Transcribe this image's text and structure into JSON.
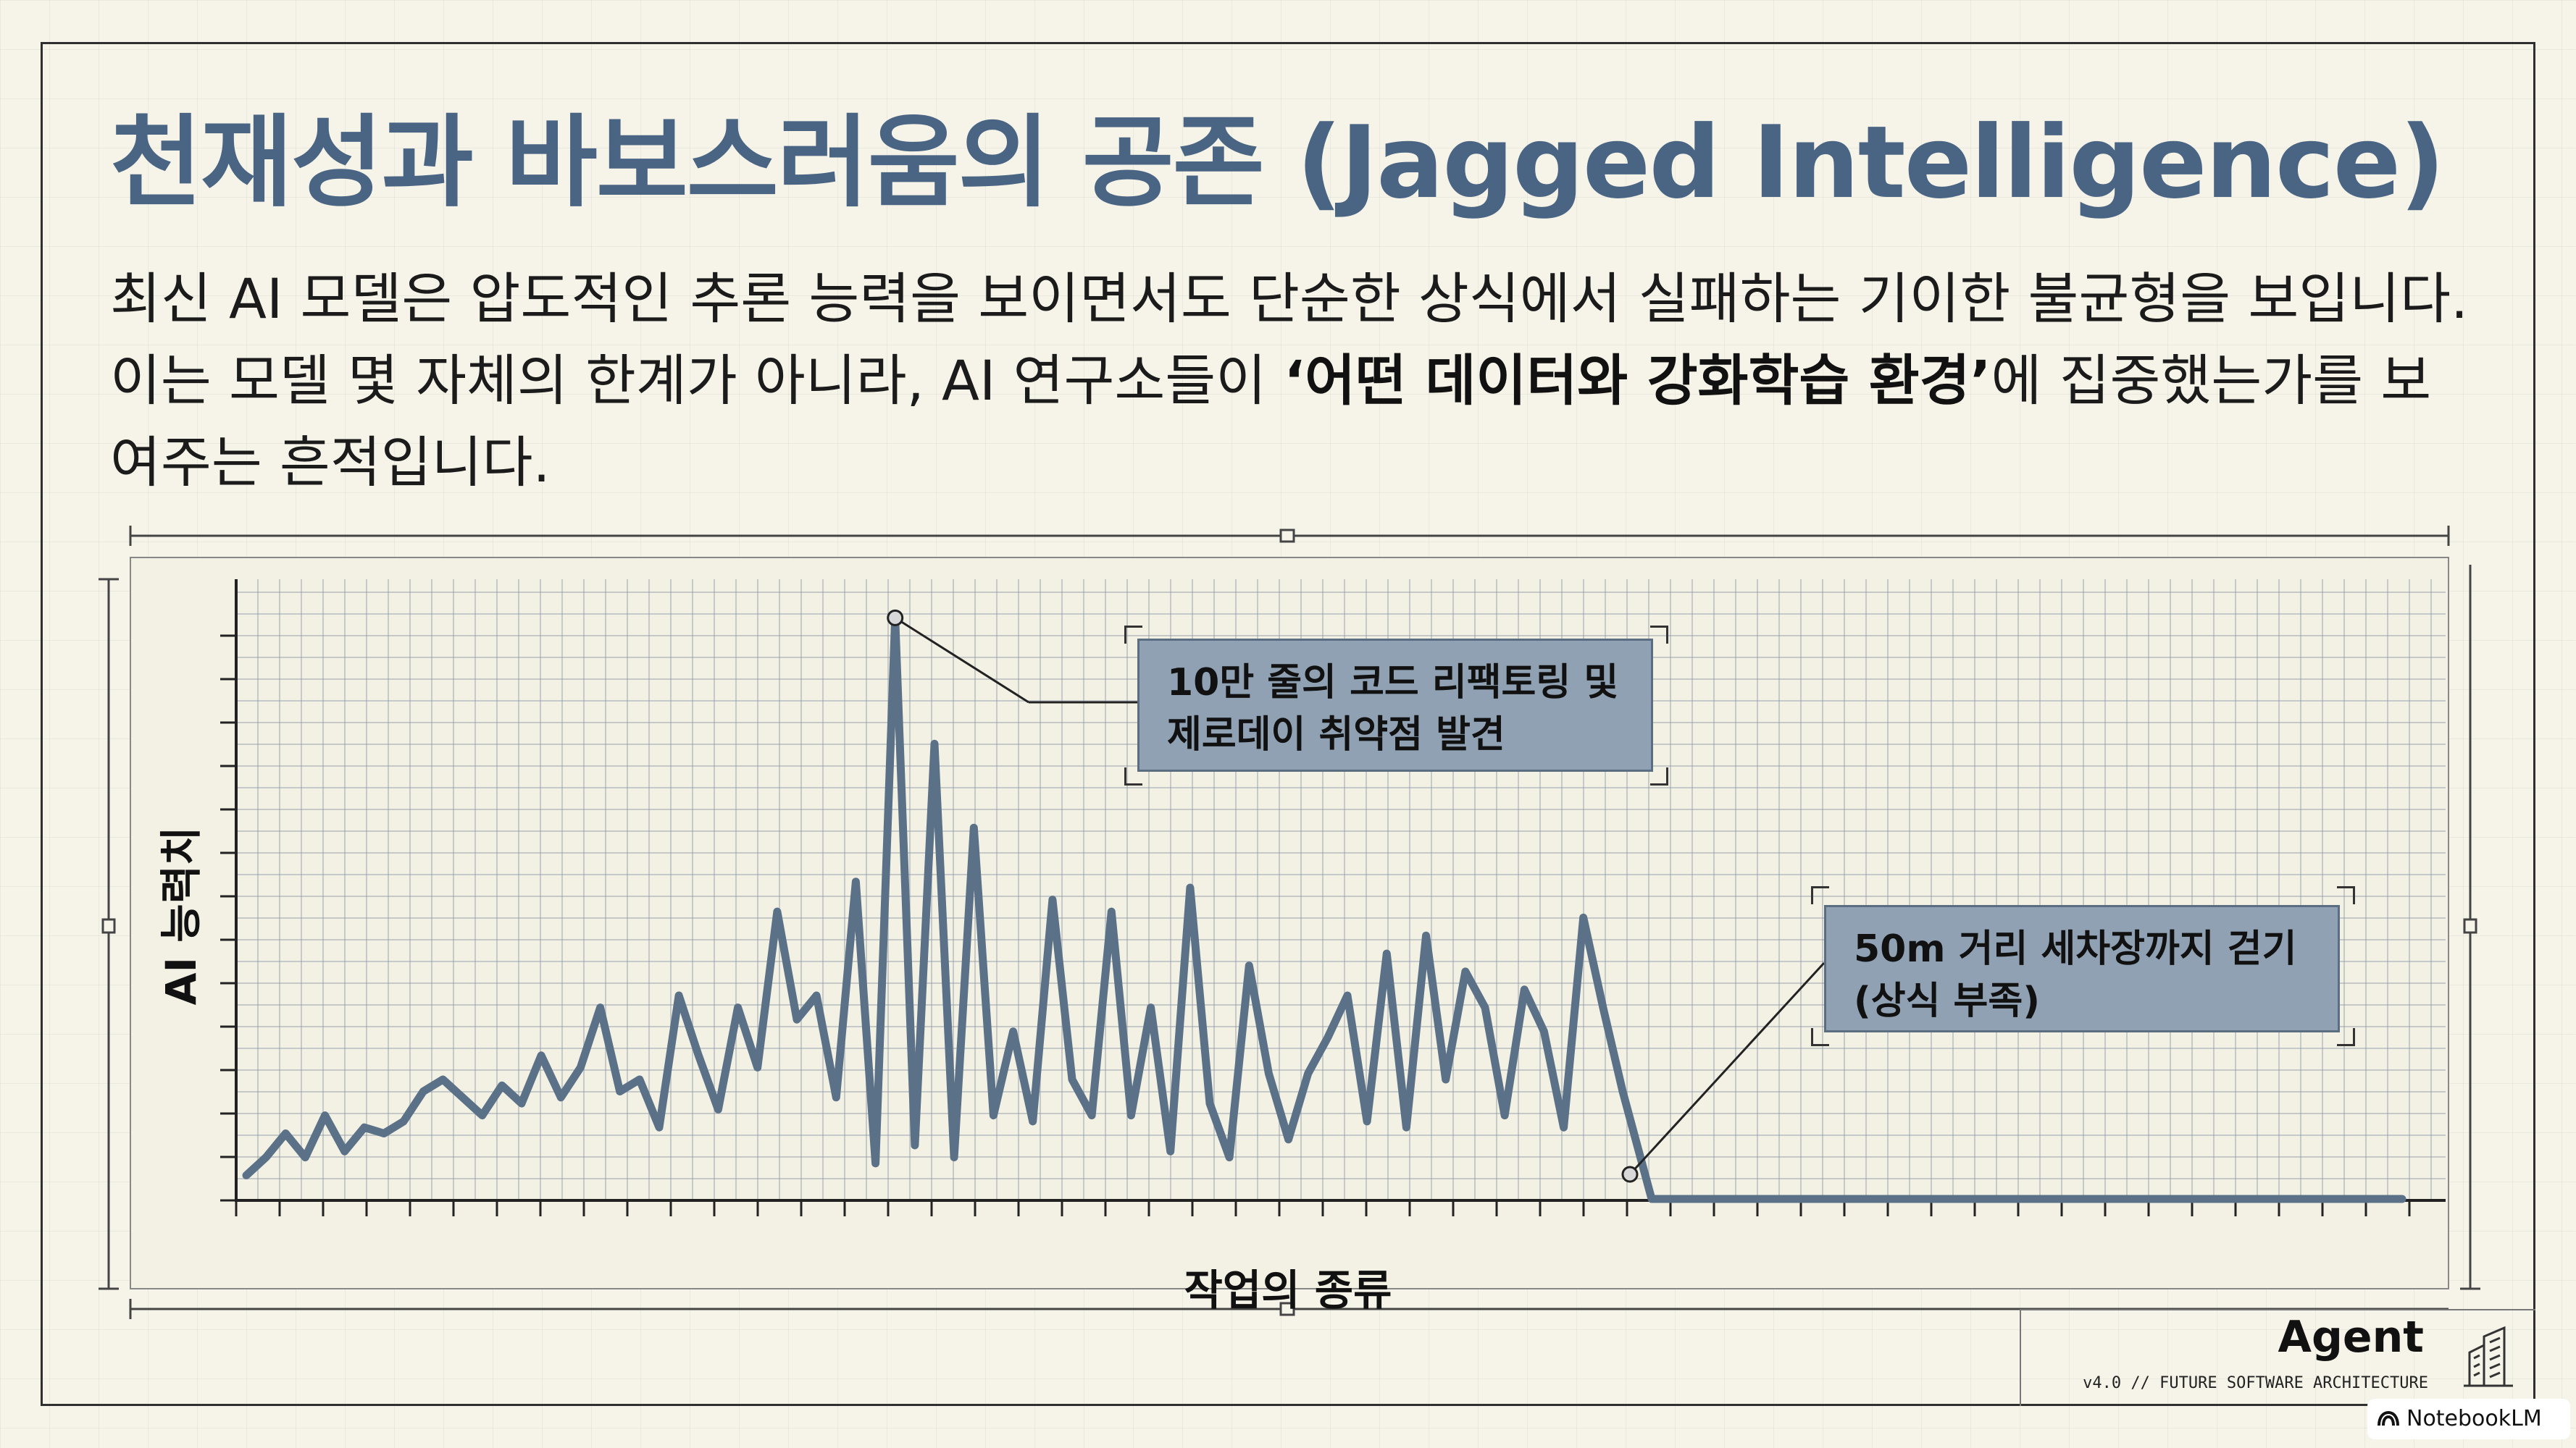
{
  "title": "천재성과 바보스러움의 공존 (Jagged Intelligence)",
  "subtitle": {
    "part1": "최신 AI 모델은 압도적인 추론 능력을 보이면서도 단순한 상식에서 실패하는 기이한 불균형을 보입니다. 이는 모델 몇 자체의 한계가 아니라, AI 연구소들이 ",
    "bold": "‘어떤 데이터와 강화학습 환경’",
    "part2": "에 집중했는가를 보여주는 흔적입니다."
  },
  "colors": {
    "title": "#4a6584",
    "line": "#5b7188",
    "callout_fill": "#8fa1b3",
    "background": "#f6f4e8"
  },
  "chart_data": {
    "type": "line",
    "xlabel": "작업의 종류",
    "ylabel": "AI 능력치",
    "x_ticks_shown": false,
    "y_ticks_shown": false,
    "xlim": [
      0,
      60
    ],
    "ylim": [
      0,
      100
    ],
    "grid": true,
    "series": [
      {
        "values": [
          2,
          5,
          9,
          5,
          12,
          6,
          10,
          9,
          11,
          16,
          18,
          15,
          12,
          17,
          14,
          22,
          15,
          20,
          30,
          16,
          18,
          10,
          32,
          22,
          13,
          30,
          20,
          46,
          28,
          32,
          15,
          51,
          4,
          95,
          7,
          74,
          5,
          60,
          12,
          26,
          11,
          48,
          18,
          12,
          46,
          12,
          30,
          6,
          50,
          14,
          5,
          37,
          19,
          8,
          19,
          25,
          32,
          11,
          39,
          10,
          42,
          18,
          36,
          30,
          12,
          33,
          26,
          10,
          45,
          30,
          16,
          0,
          0,
          0,
          0,
          0
        ],
        "x_end_flat": 60
      }
    ],
    "annotations": [
      {
        "text": "10만 줄의 코드 리팩토링 및\n제로데이 취약점 발견",
        "target": "peak"
      },
      {
        "text": "50m 거리 세차장까지 걷기\n(상식 부족)",
        "target": "drop"
      }
    ]
  },
  "brand": {
    "name": "Agent",
    "tagline": "v4.0 // FUTURE SOFTWARE ARCHITECTURE",
    "icon": "building-icon"
  },
  "watermark": {
    "label": "NotebookLM",
    "icon": "notebooklm-icon"
  }
}
